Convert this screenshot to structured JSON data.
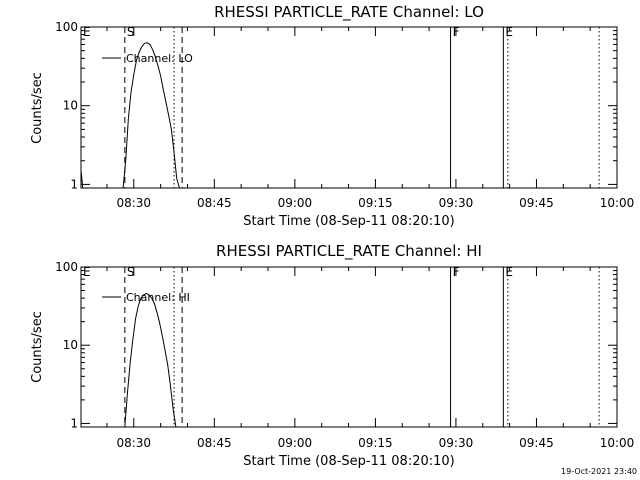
{
  "footer": {
    "timestamp": "19-Oct-2021 23:40"
  },
  "chart_data": [
    {
      "type": "line",
      "title": "RHESSI PARTICLE_RATE Channel: LO",
      "xlabel": "Start Time (08-Sep-11 08:20:10)",
      "ylabel": "Counts/sec",
      "yscale": "log",
      "ylim": [
        0.9,
        100
      ],
      "xlim": [
        "08:20:10",
        "10:00"
      ],
      "xticks": [
        "08:30",
        "08:45",
        "09:00",
        "09:15",
        "09:30",
        "09:45",
        "10:00"
      ],
      "yticks": [
        "1",
        "10",
        "100"
      ],
      "legend": {
        "label": "Channel: LO",
        "position": "top-left"
      },
      "markers": [
        {
          "label": "E",
          "time": "08:20:10",
          "style": "none"
        },
        {
          "label": "S",
          "time": "08:28:20",
          "style": "dashed"
        },
        {
          "label": "",
          "time": "08:37:30",
          "style": "dotted"
        },
        {
          "label": "",
          "time": "08:39:00",
          "style": "dashed"
        },
        {
          "label": "F",
          "time": "09:29:00",
          "style": "solid"
        },
        {
          "label": "E",
          "time": "09:38:50",
          "style": "solid"
        },
        {
          "label": "",
          "time": "09:39:40",
          "style": "dotted"
        },
        {
          "label": "",
          "time": "09:56:40",
          "style": "dotted"
        }
      ],
      "series": [
        {
          "x": [
            "08:20:10",
            "08:20:30",
            "08:28:00",
            "08:28:30",
            "08:29:00",
            "08:29:30",
            "08:30:00",
            "08:30:30",
            "08:31:00",
            "08:31:30",
            "08:32:00",
            "08:32:30",
            "08:33:00",
            "08:33:30",
            "08:34:00",
            "08:34:30",
            "08:35:00",
            "08:35:30",
            "08:36:00",
            "08:36:30",
            "08:37:00",
            "08:37:30",
            "08:38:00",
            "08:38:30"
          ],
          "y": [
            1.5,
            0.9,
            0.9,
            2.0,
            7.0,
            15,
            25,
            38,
            48,
            56,
            62,
            63,
            60,
            52,
            42,
            32,
            24,
            16,
            11,
            7.5,
            5.0,
            2.5,
            1.2,
            0.9
          ]
        }
      ]
    },
    {
      "type": "line",
      "title": "RHESSI PARTICLE_RATE Channel: HI",
      "xlabel": "Start Time (08-Sep-11 08:20:10)",
      "ylabel": "Counts/sec",
      "yscale": "log",
      "ylim": [
        0.9,
        100
      ],
      "xlim": [
        "08:20:10",
        "10:00"
      ],
      "xticks": [
        "08:30",
        "08:45",
        "09:00",
        "09:15",
        "09:30",
        "09:45",
        "10:00"
      ],
      "yticks": [
        "1",
        "10",
        "100"
      ],
      "legend": {
        "label": "Channel: HI",
        "position": "top-left"
      },
      "markers": [
        {
          "label": "E",
          "time": "08:20:10",
          "style": "none"
        },
        {
          "label": "S",
          "time": "08:28:20",
          "style": "dashed"
        },
        {
          "label": "",
          "time": "08:37:30",
          "style": "dotted"
        },
        {
          "label": "",
          "time": "08:39:00",
          "style": "dashed"
        },
        {
          "label": "F",
          "time": "09:29:00",
          "style": "solid"
        },
        {
          "label": "E",
          "time": "09:38:50",
          "style": "solid"
        },
        {
          "label": "",
          "time": "09:39:40",
          "style": "dotted"
        },
        {
          "label": "",
          "time": "09:56:40",
          "style": "dotted"
        }
      ],
      "series": [
        {
          "x": [
            "08:28:20",
            "08:28:50",
            "08:29:20",
            "08:29:50",
            "08:30:20",
            "08:30:50",
            "08:31:20",
            "08:31:50",
            "08:32:20",
            "08:32:50",
            "08:33:20",
            "08:33:50",
            "08:34:20",
            "08:34:50",
            "08:35:20",
            "08:35:50",
            "08:36:20",
            "08:36:50",
            "08:37:20",
            "08:37:50"
          ],
          "y": [
            0.9,
            2.5,
            6.0,
            12,
            22,
            32,
            40,
            44,
            46,
            44,
            40,
            34,
            26,
            19,
            13,
            8.5,
            5.5,
            3.0,
            1.5,
            0.9
          ]
        }
      ]
    }
  ]
}
